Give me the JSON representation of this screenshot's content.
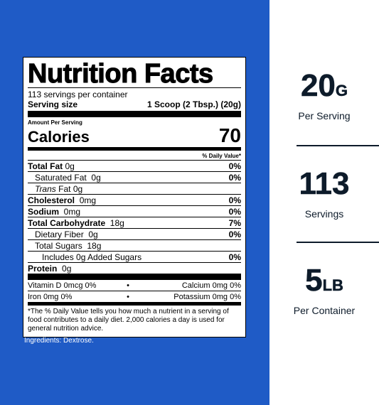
{
  "label": {
    "title": "Nutrition Facts",
    "servings_per_container": "113 servings per container",
    "serving_size_label": "Serving size",
    "serving_size_value": "1 Scoop (2 Tbsp.) (20g)",
    "amount_per_serving": "Amount Per Serving",
    "calories_label": "Calories",
    "calories_value": "70",
    "dv_header": "% Daily Value*",
    "nutrients": [
      {
        "name": "Total Fat",
        "amount": "0g",
        "dv": "0%"
      },
      {
        "name": "Saturated Fat",
        "amount": "0g",
        "dv": "0%"
      },
      {
        "name": "Trans",
        "amount": "Fat  0g",
        "dv": ""
      },
      {
        "name": "Cholesterol",
        "amount": "0mg",
        "dv": "0%"
      },
      {
        "name": "Sodium",
        "amount": "0mg",
        "dv": "0%"
      },
      {
        "name": "Total Carbohydrate",
        "amount": "18g",
        "dv": "7%"
      },
      {
        "name": "Dietary Fiber",
        "amount": "0g",
        "dv": "0%"
      },
      {
        "name": "Total Sugars",
        "amount": "18g",
        "dv": ""
      },
      {
        "name": "Includes 0g Added Sugars",
        "amount": "",
        "dv": "0%"
      },
      {
        "name": "Protein",
        "amount": "0g",
        "dv": ""
      }
    ],
    "vitamins": [
      {
        "left": "Vitamin D  0mcg  0%",
        "right": "Calcium  0mg  0%"
      },
      {
        "left": "Iron  0mg  0%",
        "right": "Potassium  0mg  0%"
      }
    ],
    "bullet": "•",
    "footnote": "*The % Daily Value tells you how much a nutrient in a serving of food contributes to a daily diet. 2,000 calories a day is used for general nutrition advice."
  },
  "ingredients": "Ingredients: Dextrose.",
  "stats": [
    {
      "value": "20",
      "unit": "G",
      "caption": "Per Serving"
    },
    {
      "value": "113",
      "unit": "",
      "caption": "Servings"
    },
    {
      "value": "5",
      "unit": "LB",
      "caption": "Per Container"
    }
  ],
  "colors": {
    "panel": "#1f5bc6",
    "stat_text": "#0d1b2a"
  }
}
